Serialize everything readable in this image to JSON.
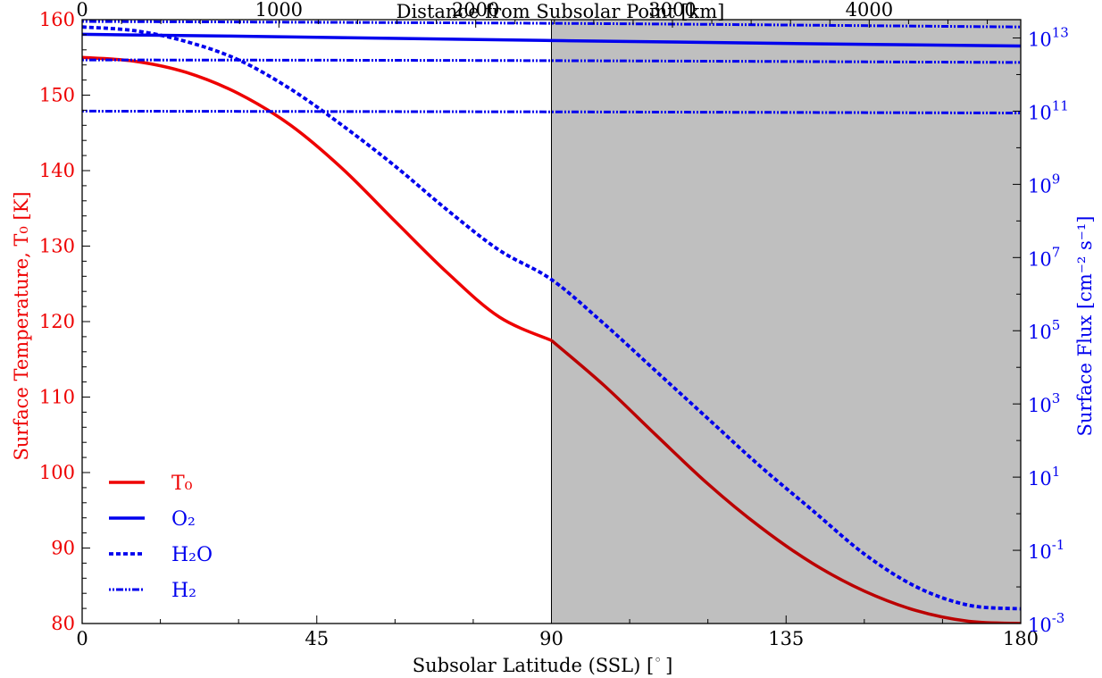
{
  "chart_data": {
    "type": "line",
    "xlabel": "Subsolar Latitude (SSL) [",
    "xlabel_unit": "◦",
    "xlabel_close": "]",
    "top_xlabel": "Distance from Subsolar Point [km]",
    "ylabel_left": "Surface Temperature, T₀ [K]",
    "ylabel_right": "Surface Flux [cm⁻² s⁻¹]",
    "xlim": [
      0,
      180
    ],
    "ylim_left": [
      80,
      160
    ],
    "ylim_right_log10": [
      -3,
      13.5
    ],
    "shaded_region": [
      90,
      180
    ],
    "x_ticks": [
      0,
      45,
      90,
      135,
      180
    ],
    "x_tick_labels": [
      "0",
      "45",
      "90",
      "135",
      "180"
    ],
    "top_x_ticks_km": [
      0,
      1000,
      2000,
      3000,
      4000
    ],
    "top_x_tick_labels": [
      "0",
      "1000",
      "2000",
      "3000",
      "4000"
    ],
    "top_x_km_per_degree": 26.5,
    "y_left_ticks": [
      80,
      90,
      100,
      110,
      120,
      130,
      140,
      150,
      160
    ],
    "y_left_tick_labels": [
      "80",
      "90",
      "100",
      "110",
      "120",
      "130",
      "140",
      "150",
      "160"
    ],
    "y_right_tick_exponents": [
      -3,
      -1,
      1,
      3,
      5,
      7,
      9,
      11,
      13
    ],
    "y_right_tick_mantissa": "10",
    "series": [
      {
        "name": "T₀",
        "axis": "left",
        "style": "solid",
        "color": "#ee0000",
        "color_night": "#bb0000",
        "x": [
          0,
          10,
          20,
          30,
          40,
          50,
          60,
          70,
          80,
          90,
          100,
          110,
          120,
          130,
          140,
          150,
          160,
          170,
          180
        ],
        "y": [
          155.0,
          154.5,
          153.0,
          150.2,
          146.0,
          140.2,
          133.3,
          126.5,
          120.6,
          117.5,
          111.6,
          105.0,
          98.5,
          92.8,
          88.0,
          84.3,
          81.7,
          80.3,
          80.0
        ]
      },
      {
        "name": "O₂",
        "axis": "right",
        "style": "solid",
        "color": "#0000ee",
        "x": [
          0,
          45,
          90,
          135,
          180
        ],
        "y_log10": [
          13.1,
          13.02,
          12.93,
          12.85,
          12.78
        ]
      },
      {
        "name": "H₂O",
        "axis": "right",
        "style": "dashed",
        "color": "#0000ee",
        "x": [
          0,
          10,
          20,
          30,
          40,
          50,
          60,
          70,
          80,
          90,
          100,
          110,
          120,
          130,
          140,
          150,
          160,
          170,
          180
        ],
        "y_log10": [
          13.3,
          13.2,
          12.9,
          12.4,
          11.6,
          10.6,
          9.5,
          8.3,
          7.2,
          6.4,
          5.2,
          3.9,
          2.6,
          1.3,
          0.1,
          -1.1,
          -2.0,
          -2.5,
          -2.6
        ]
      },
      {
        "name": "H₂",
        "axis": "right",
        "style": "dash-dot",
        "color": "#0000ee",
        "lines": [
          {
            "x": [
              0,
              90,
              180
            ],
            "y_log10": [
              13.45,
              13.4,
              13.3
            ]
          },
          {
            "x": [
              0,
              90,
              180
            ],
            "y_log10": [
              12.4,
              12.38,
              12.33
            ]
          },
          {
            "x": [
              0,
              90,
              180
            ],
            "y_log10": [
              11.0,
              10.98,
              10.95
            ]
          }
        ]
      }
    ],
    "legend": {
      "placement": "lower-left",
      "entries": [
        {
          "label": "T₀",
          "style": "solid",
          "color": "#ee0000",
          "text_color": "#ee0000"
        },
        {
          "label": "O₂",
          "style": "solid",
          "color": "#0000ee",
          "text_color": "#0000ee"
        },
        {
          "label": "H₂O",
          "style": "dashed",
          "color": "#0000ee",
          "text_color": "#0000ee"
        },
        {
          "label": "H₂",
          "style": "dash-dot",
          "color": "#0000ee",
          "text_color": "#0000ee"
        }
      ]
    },
    "colors": {
      "left_axis": "#ee0000",
      "right_axis": "#0000ee",
      "shade": "#bfbfbf",
      "frame": "#000000"
    },
    "grid": false
  }
}
